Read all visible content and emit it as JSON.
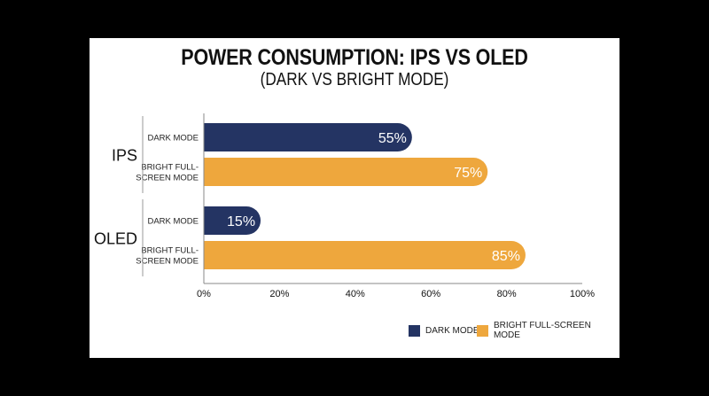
{
  "header": {
    "title": "POWER CONSUMPTION: IPS VS OLED",
    "subtitle": "(DARK VS BRIGHT MODE)"
  },
  "colors": {
    "dark_mode": "#243463",
    "bright_mode": "#EEA73D",
    "axis": "#888888",
    "background": "#ffffff"
  },
  "chart_data": {
    "type": "bar",
    "orientation": "horizontal",
    "title": "POWER CONSUMPTION: IPS VS OLED",
    "subtitle": "(DARK VS BRIGHT MODE)",
    "groups": [
      {
        "name": "IPS",
        "bars": [
          {
            "label_lines": [
              "DARK MODE"
            ],
            "series": "DARK MODE",
            "value": 55,
            "value_label": "55%"
          },
          {
            "label_lines": [
              "BRIGHT FULL-",
              "SCREEN MODE"
            ],
            "series": "BRIGHT FULL-SCREEN MODE",
            "value": 75,
            "value_label": "75%"
          }
        ]
      },
      {
        "name": "OLED",
        "bars": [
          {
            "label_lines": [
              "DARK MODE"
            ],
            "series": "DARK MODE",
            "value": 15,
            "value_label": "15%"
          },
          {
            "label_lines": [
              "BRIGHT FULL-",
              "SCREEN MODE"
            ],
            "series": "BRIGHT FULL-SCREEN MODE",
            "value": 85,
            "value_label": "85%"
          }
        ]
      }
    ],
    "series": [
      {
        "name": "DARK MODE",
        "color": "#243463",
        "values": [
          55,
          15
        ]
      },
      {
        "name": "BRIGHT FULL-SCREEN MODE",
        "color": "#EEA73D",
        "values": [
          75,
          85
        ]
      }
    ],
    "xlim": [
      0,
      100
    ],
    "xticks": [
      "0%",
      "20%",
      "40%",
      "60%",
      "80%",
      "100%"
    ],
    "grid": false,
    "legend_position": "bottom-right"
  },
  "legend": {
    "items": [
      {
        "label": "DARK MODE",
        "color": "#243463"
      },
      {
        "label": "BRIGHT FULL-SCREEN MODE",
        "color": "#EEA73D"
      }
    ]
  }
}
